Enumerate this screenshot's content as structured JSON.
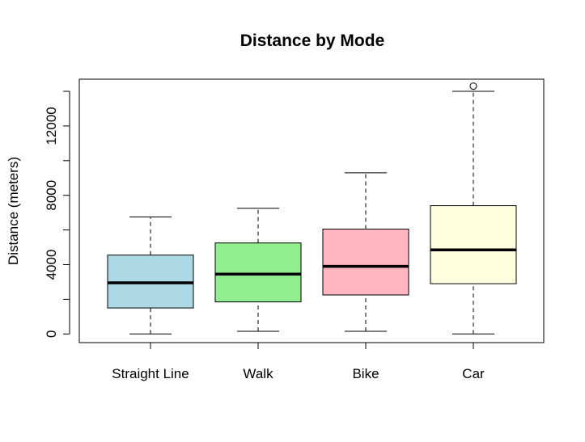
{
  "chart_data": {
    "type": "boxplot",
    "title": "Distance by Mode",
    "xlabel": "",
    "ylabel": "Distance (meters)",
    "ylim": [
      -500,
      14700
    ],
    "yticks": [
      0,
      4000,
      8000,
      12000
    ],
    "grid": false,
    "categories": [
      "Straight Line",
      "Walk",
      "Bike",
      "Car"
    ],
    "boxes": [
      {
        "category": "Straight Line",
        "whisker_low": 0,
        "q1": 1500,
        "median": 2950,
        "q3": 4550,
        "whisker_high": 6750,
        "outliers": [],
        "color": "#add8e6"
      },
      {
        "category": "Walk",
        "whisker_low": 150,
        "q1": 1850,
        "median": 3450,
        "q3": 5250,
        "whisker_high": 7250,
        "outliers": [],
        "color": "#90ee90"
      },
      {
        "category": "Bike",
        "whisker_low": 150,
        "q1": 2250,
        "median": 3900,
        "q3": 6050,
        "whisker_high": 9300,
        "outliers": [],
        "color": "#ffb6c1"
      },
      {
        "category": "Car",
        "whisker_low": 0,
        "q1": 2900,
        "median": 4850,
        "q3": 7400,
        "whisker_high": 14000,
        "outliers": [
          14300
        ],
        "color": "#ffffe0"
      }
    ]
  }
}
